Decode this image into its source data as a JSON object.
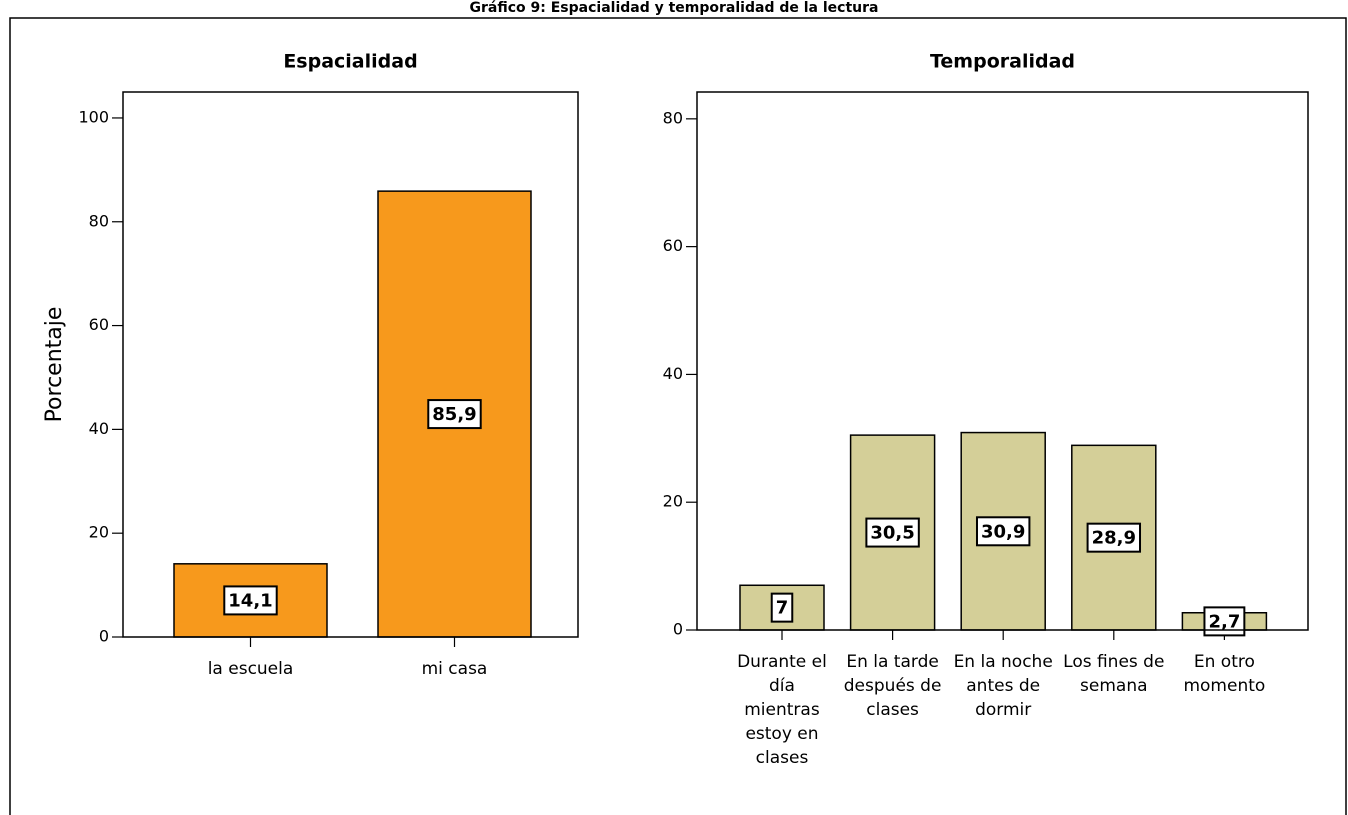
{
  "title": "Gráfico 9: Espacialidad y temporalidad de la lectura",
  "chart_data": [
    {
      "type": "bar",
      "title": "Espacialidad",
      "y_label": "Porcentaje",
      "categories": [
        "la escuela",
        "mi casa"
      ],
      "values": [
        14.1,
        85.9
      ],
      "value_labels": [
        "14,1",
        "85,9"
      ],
      "color": "#f7991c",
      "ylim": [
        0,
        105
      ],
      "yticks": [
        0,
        20,
        40,
        60,
        80,
        100
      ]
    },
    {
      "type": "bar",
      "title": "Temporalidad",
      "categories": [
        "Durante el día mientras estoy en clases",
        "En la tarde después de clases",
        "En la noche antes de dormir",
        "Los fines de semana",
        "En otro momento"
      ],
      "values": [
        7,
        30.5,
        30.9,
        28.9,
        2.7
      ],
      "value_labels": [
        "7",
        "30,5",
        "30,9",
        "28,9",
        "2,7"
      ],
      "color": "#d4cf98",
      "ylim": [
        0,
        84.2
      ],
      "yticks": [
        0,
        20,
        40,
        60,
        80
      ]
    }
  ]
}
